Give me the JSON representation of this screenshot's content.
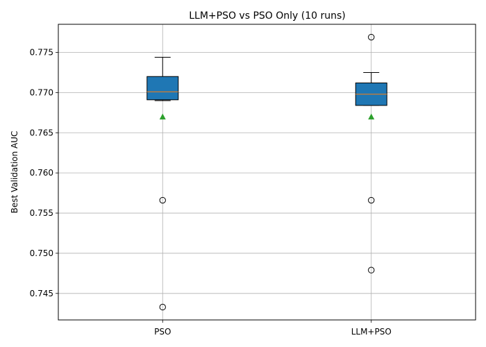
{
  "chart_data": {
    "type": "box",
    "title": "LLM+PSO vs PSO Only (10 runs)",
    "xlabel": "",
    "ylabel": "Best Validation AUC",
    "ylim": [
      0.7417,
      0.7785
    ],
    "y_ticks": [
      0.745,
      0.75,
      0.755,
      0.76,
      0.765,
      0.77,
      0.775
    ],
    "y_tick_labels": [
      "0.745",
      "0.750",
      "0.755",
      "0.760",
      "0.765",
      "0.770",
      "0.775"
    ],
    "grid": true,
    "categories": [
      "PSO",
      "LLM+PSO"
    ],
    "series": [
      {
        "category": "PSO",
        "whisker_low": 0.769,
        "q1": 0.7691,
        "median": 0.7701,
        "q3": 0.772,
        "whisker_high": 0.7744,
        "mean": 0.767,
        "outliers": [
          0.7566,
          0.7433
        ]
      },
      {
        "category": "LLM+PSO",
        "whisker_low": 0.7684,
        "q1": 0.7684,
        "median": 0.7698,
        "q3": 0.7712,
        "whisker_high": 0.7725,
        "mean": 0.767,
        "outliers": [
          0.7769,
          0.7566,
          0.7479
        ]
      }
    ],
    "colors": {
      "box_fill": "#1f77b4",
      "median": "#ff7f0e",
      "mean_marker": "#2ca02c",
      "grid": "#b0b0b0"
    }
  }
}
